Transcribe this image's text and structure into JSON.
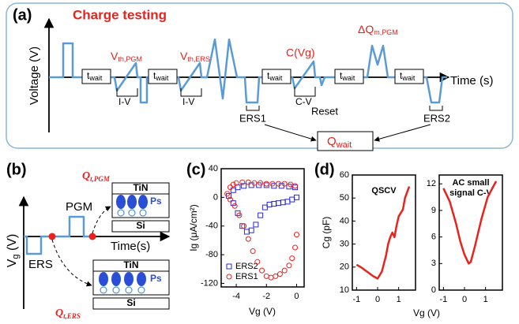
{
  "panel_a": {
    "label": "(a)",
    "title": "Charge testing",
    "y_label": "Voltage (V)",
    "x_label": "Time (s)",
    "t_wait": {
      "main": "t",
      "sub": "wait"
    },
    "vth_pgm": {
      "main": "V",
      "sub": "th,PGM"
    },
    "vth_ers": {
      "main": "V",
      "sub": "th,ERS"
    },
    "iv": "I-V",
    "cvg": "C(Vg)",
    "cv": "C-V",
    "reset": "Reset",
    "dq": {
      "main": "ΔQ",
      "sub": "m,PGM"
    },
    "ers1": "ERS1",
    "ers2": "ERS2",
    "q_wait": {
      "main": "Q",
      "sub": "wait"
    }
  },
  "panel_b": {
    "label": "(b)",
    "y_label": {
      "main": "V",
      "sub": "g",
      "rest": " (V)"
    },
    "ers": "ERS",
    "pgm": "PGM",
    "x_label": "Time(s)",
    "q_pgm": {
      "main": "Q",
      "sub": "t,PGM"
    },
    "q_ers": {
      "main": "Q",
      "sub": "t,ERS"
    },
    "tin": "TiN",
    "ps": "Ps",
    "si": "Si"
  },
  "panel_c": {
    "label": "(c)"
  },
  "panel_d": {
    "label": "(d)"
  },
  "chart_data": [
    {
      "type": "scatter",
      "y_label": "Ig (μA/cm²)",
      "x_label": "Vg (V)",
      "xlim": [
        -5,
        0.5
      ],
      "xticks": [
        -4,
        -2,
        0
      ],
      "ylim": [
        -125,
        40
      ],
      "yticks": [
        40,
        0,
        -40,
        -80,
        -120
      ],
      "series": [
        {
          "name": "ERS2",
          "color": "#2a2ad6",
          "marker": "square",
          "x": [
            -4.5,
            -4.2,
            -3.9,
            -3.5,
            -3,
            -2.5,
            -2,
            -1.5,
            -1,
            -0.5,
            -0.1,
            0,
            -0.3,
            -0.6,
            -0.9,
            -1.2,
            -1.5,
            -1.8,
            -2.1,
            -2.4,
            -2.7,
            -3,
            -3.3,
            -3.6,
            -3.9,
            -4.2
          ],
          "values": [
            2,
            10,
            14,
            16,
            17,
            17,
            17,
            16,
            16,
            15,
            14,
            0,
            -3,
            -6,
            -7,
            -8,
            -9,
            -10,
            -14,
            -25,
            -38,
            -46,
            -48,
            -40,
            -22,
            -8
          ]
        },
        {
          "name": "ERS1",
          "color": "#e8231e",
          "marker": "circle",
          "x": [
            -4.6,
            -4.4,
            -4.2,
            -4,
            -3.6,
            -3.2,
            -2.8,
            -2.4,
            -2,
            -1.6,
            -1.2,
            -0.8,
            -0.4,
            -0.1,
            0,
            -0.1,
            -0.3,
            -0.5,
            -0.8,
            -1.1,
            -1.4,
            -1.7,
            -2,
            -2.3,
            -2.6,
            -2.9,
            -3.2,
            -3.5,
            -3.8,
            -4.1,
            -4.4
          ],
          "values": [
            5,
            14,
            18,
            20,
            21,
            21,
            20,
            20,
            19,
            19,
            19,
            19,
            18,
            16,
            -52,
            -70,
            -85,
            -95,
            -102,
            -107,
            -110,
            -112,
            -110,
            -102,
            -90,
            -75,
            -58,
            -40,
            -25,
            -12,
            -3
          ]
        }
      ]
    },
    {
      "type": "line",
      "title": "QSCV",
      "y_label": "Cg (pF)",
      "x_label": "Vg (V)",
      "xlim": [
        -1.2,
        1.8
      ],
      "xticks": [
        -1,
        0,
        1
      ],
      "ylim": [
        10,
        60
      ],
      "yticks": [
        10,
        20,
        30,
        40,
        50,
        60
      ],
      "x": [
        -1,
        -0.8,
        -0.5,
        -0.2,
        0,
        0.2,
        0.4,
        0.5,
        0.6,
        0.7,
        0.8,
        0.9,
        1,
        1.2,
        1.3,
        1.5
      ],
      "values": [
        21,
        20,
        18,
        16,
        15,
        18,
        25,
        30,
        33,
        35,
        33,
        38,
        42,
        45,
        50,
        55
      ],
      "color": "#e8231e"
    },
    {
      "type": "line",
      "title_lines": [
        "AC small",
        "signal C-V"
      ],
      "xlim": [
        -1.2,
        1.8
      ],
      "xticks": [
        -1,
        0,
        1
      ],
      "ylim": [
        0,
        13
      ],
      "yticks": [
        0,
        3,
        6,
        9,
        12
      ],
      "x": [
        -1,
        -0.7,
        -0.4,
        -0.2,
        0,
        0.2,
        0.3,
        0.5,
        0.8,
        1.1,
        1.5
      ],
      "values": [
        11.5,
        10,
        7.5,
        5.5,
        4,
        3,
        3.2,
        5,
        8,
        10.5,
        12.3
      ],
      "color": "#e8231e"
    }
  ]
}
